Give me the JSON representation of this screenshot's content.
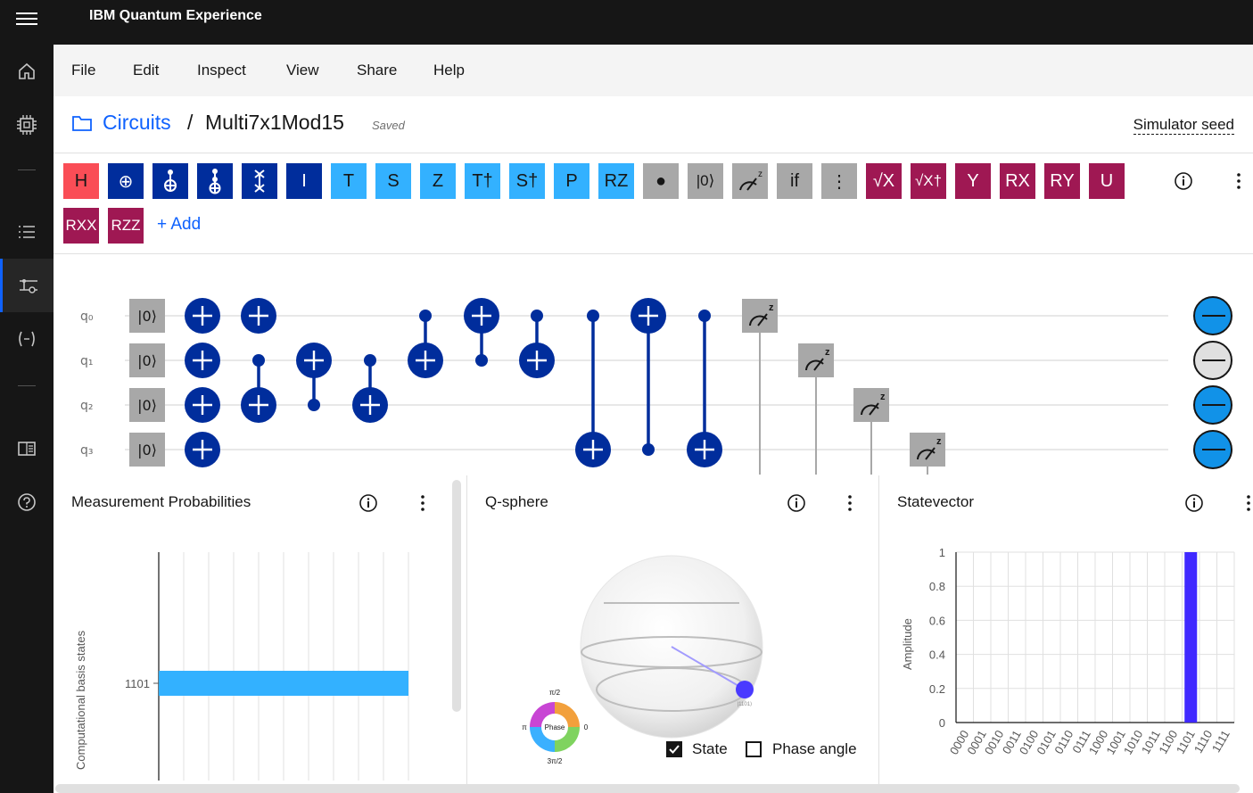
{
  "app": {
    "title": "IBM Quantum Experience"
  },
  "menu": [
    "File",
    "Edit",
    "Inspect",
    "View",
    "Share",
    "Help"
  ],
  "breadcrumb": {
    "circuits": "Circuits",
    "separator": "/",
    "name": "Multi7x1Mod15",
    "status": "Saved"
  },
  "simulator_seed": "Simulator seed",
  "palette": {
    "gates": [
      {
        "label": "H",
        "style": "h"
      },
      {
        "label": "⊕",
        "style": "dark"
      },
      {
        "label": "",
        "style": "dark",
        "icon": "cnot-icon"
      },
      {
        "label": "",
        "style": "dark",
        "icon": "toffoli-icon"
      },
      {
        "label": "",
        "style": "dark",
        "icon": "swap-icon"
      },
      {
        "label": "I",
        "style": "dark"
      },
      {
        "label": "T",
        "style": "light"
      },
      {
        "label": "S",
        "style": "light"
      },
      {
        "label": "Z",
        "style": "light"
      },
      {
        "label": "T†",
        "style": "light"
      },
      {
        "label": "S†",
        "style": "light"
      },
      {
        "label": "P",
        "style": "light"
      },
      {
        "label": "RZ",
        "style": "light"
      },
      {
        "label": "●",
        "style": "gray"
      },
      {
        "label": "|0⟩",
        "style": "gray"
      },
      {
        "label": "",
        "style": "gray",
        "icon": "measure-icon"
      },
      {
        "label": "if",
        "style": "gray"
      },
      {
        "label": "⋮",
        "style": "gray"
      },
      {
        "label": "√X",
        "style": "mag"
      },
      {
        "label": "√X†",
        "style": "mag"
      },
      {
        "label": "Y",
        "style": "mag"
      },
      {
        "label": "RX",
        "style": "mag"
      },
      {
        "label": "RY",
        "style": "mag"
      },
      {
        "label": "U",
        "style": "mag"
      },
      {
        "label": "RXX",
        "style": "mag"
      },
      {
        "label": "RZZ",
        "style": "mag"
      }
    ],
    "add_label": "+ Add"
  },
  "circuit": {
    "qubits": [
      "q₀",
      "q₁",
      "q₂",
      "q₃"
    ],
    "init_label": "|0⟩",
    "output_states": [
      "one",
      "zero",
      "one",
      "one"
    ]
  },
  "panels": {
    "probabilities": {
      "title": "Measurement Probabilities",
      "ylabel": "Computational basis states",
      "tick": "1101"
    },
    "qsphere": {
      "title": "Q-sphere",
      "state_label": "|1101⟩",
      "phase_label": "Phase",
      "phase_ticks": {
        "top": "π/2",
        "left": "π",
        "right": "0",
        "bottom": "3π/2"
      },
      "state_checkbox": "State",
      "phase_checkbox": "Phase angle"
    },
    "statevector": {
      "title": "Statevector",
      "ylabel": "Amplitude"
    }
  },
  "chart_data": [
    {
      "type": "bar",
      "orientation": "horizontal",
      "categories": [
        "1101"
      ],
      "values": [
        1.0
      ],
      "ylabel": "Computational basis states",
      "xlim": [
        0,
        1
      ],
      "grid": true
    },
    {
      "type": "bar",
      "categories": [
        "0000",
        "0001",
        "0010",
        "0011",
        "0100",
        "0101",
        "0110",
        "0111",
        "1000",
        "1001",
        "1010",
        "1011",
        "1100",
        "1101",
        "1110",
        "1111"
      ],
      "values": [
        0,
        0,
        0,
        0,
        0,
        0,
        0,
        0,
        0,
        0,
        0,
        0,
        0,
        1,
        0,
        0
      ],
      "ylabel": "Amplitude",
      "ylim": [
        0,
        1
      ],
      "yticks": [
        "0",
        "0.2",
        "0.4",
        "0.6",
        "0.8",
        "1"
      ],
      "grid": true
    }
  ]
}
